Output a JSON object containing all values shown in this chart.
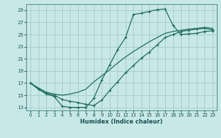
{
  "xlabel": "Humidex (Indice chaleur)",
  "background_color": "#c8e8e8",
  "grid_color": "#a8cccc",
  "line_color": "#1a6a5a",
  "xlim": [
    -0.5,
    23.5
  ],
  "ylim": [
    12.5,
    30.0
  ],
  "xticks": [
    0,
    1,
    2,
    3,
    4,
    5,
    6,
    7,
    8,
    9,
    10,
    11,
    12,
    13,
    14,
    15,
    16,
    17,
    18,
    19,
    20,
    21,
    22,
    23
  ],
  "yticks": [
    13,
    15,
    17,
    19,
    21,
    23,
    25,
    27,
    29
  ],
  "curve1_x": [
    0,
    1,
    2,
    3,
    4,
    5,
    6,
    7,
    8,
    9,
    10,
    11,
    12,
    13,
    14,
    15,
    16,
    17,
    18,
    19,
    20,
    21,
    22,
    23
  ],
  "curve1_y": [
    17.0,
    16.0,
    15.2,
    14.8,
    13.2,
    13.0,
    13.0,
    13.0,
    14.5,
    17.5,
    20.0,
    22.5,
    24.5,
    28.3,
    28.5,
    28.8,
    29.1,
    29.2,
    26.5,
    25.0,
    25.1,
    25.2,
    25.5,
    25.6
  ],
  "curve2_x": [
    0,
    1,
    2,
    3,
    4,
    5,
    6,
    7,
    8,
    9,
    10,
    11,
    12,
    13,
    14,
    15,
    16,
    17,
    18,
    19,
    20,
    21,
    22,
    23
  ],
  "curve2_y": [
    17.0,
    16.2,
    15.5,
    15.2,
    15.0,
    15.2,
    15.5,
    16.0,
    17.2,
    18.2,
    19.2,
    20.3,
    21.3,
    22.2,
    23.0,
    23.8,
    24.5,
    25.2,
    25.5,
    25.7,
    25.9,
    26.0,
    26.2,
    26.0
  ],
  "curve3_x": [
    0,
    1,
    2,
    3,
    4,
    5,
    6,
    7,
    8,
    9,
    10,
    11,
    12,
    13,
    14,
    15,
    16,
    17,
    18,
    19,
    20,
    21,
    22,
    23
  ],
  "curve3_y": [
    17.0,
    16.0,
    15.3,
    15.0,
    14.3,
    14.0,
    13.8,
    13.5,
    13.3,
    14.2,
    15.8,
    17.2,
    18.7,
    19.9,
    21.1,
    22.1,
    23.3,
    24.5,
    25.0,
    25.5,
    25.7,
    25.9,
    26.0,
    25.8
  ],
  "curve1_has_markers": true,
  "curve2_has_markers": false,
  "curve3_has_markers": true
}
